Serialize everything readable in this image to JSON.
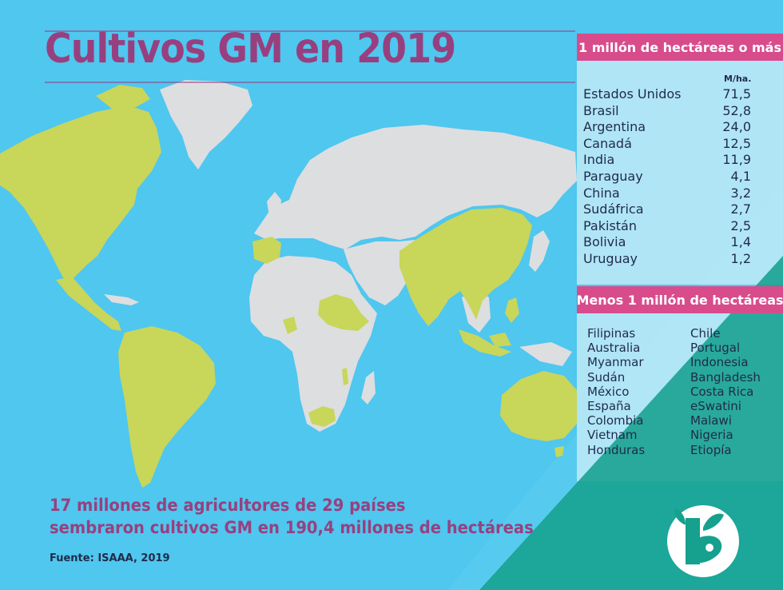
{
  "title": "Cultivos GM en 2019",
  "colors": {
    "ocean": "#4fc7ef",
    "land": "#dddee0",
    "gm_country": "#c8d65a",
    "accent_purple": "#98407f",
    "header_pink": "#d84c8c",
    "panel": "#b6e4f5",
    "teal": "#16a08e"
  },
  "map_gm_countries": [
    "Estados Unidos",
    "Brasil",
    "Argentina",
    "Canadá",
    "India",
    "Paraguay",
    "China",
    "Sudáfrica",
    "Pakistán",
    "Bolivia",
    "Uruguay",
    "Filipinas",
    "Australia",
    "Myanmar",
    "Sudán",
    "México",
    "España",
    "Colombia",
    "Vietnam",
    "Honduras",
    "Chile",
    "Portugal",
    "Indonesia",
    "Bangladesh",
    "Costa Rica",
    "eSwatini",
    "Malawi",
    "Nigeria",
    "Etiopía"
  ],
  "large_panel": {
    "header": "1 millón de hectáreas o más",
    "unit": "M/ha.",
    "rows": [
      {
        "country": "Estados Unidos",
        "value": "71,5"
      },
      {
        "country": "Brasil",
        "value": "52,8"
      },
      {
        "country": "Argentina",
        "value": "24,0"
      },
      {
        "country": "Canadá",
        "value": "12,5"
      },
      {
        "country": "India",
        "value": "11,9"
      },
      {
        "country": "Paraguay",
        "value": "4,1"
      },
      {
        "country": "China",
        "value": "3,2"
      },
      {
        "country": "Sudáfrica",
        "value": "2,7"
      },
      {
        "country": "Pakistán",
        "value": "2,5"
      },
      {
        "country": "Bolivia",
        "value": "1,4"
      },
      {
        "country": "Uruguay",
        "value": "1,2"
      }
    ]
  },
  "small_panel": {
    "header": "Menos 1 millón de hectáreas",
    "col1": [
      "Filipinas",
      "Australia",
      "Myanmar",
      "Sudán",
      "México",
      "España",
      "Colombia",
      "Vietnam",
      "Honduras"
    ],
    "col2": [
      "Chile",
      "Portugal",
      "Indonesia",
      "Bangladesh",
      "Costa Rica",
      "eSwatini",
      "Malawi",
      "Nigeria",
      "Etiopía"
    ]
  },
  "footer": {
    "line1": "17 millones de agricultores de 29 países",
    "line2": "sembraron cultivos GM en 190,4 millones de hectáreas",
    "source": "Fuente: ISAAA, 2019"
  },
  "logo_icon": "bio-leaf-b-logo"
}
